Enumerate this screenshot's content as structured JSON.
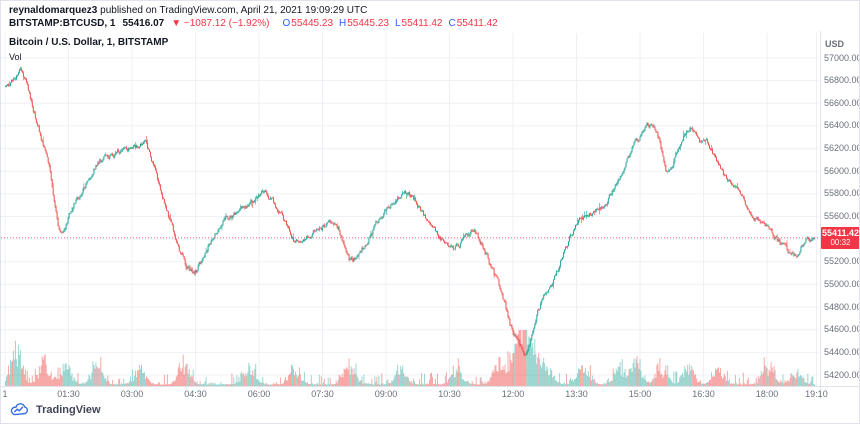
{
  "header": {
    "username": "reynaldomarquez3",
    "published_text": " published on TradingView.com, April 21, 2021 19:09:29 UTC",
    "symbol": "BITSTAMP:BTCUSD, 1",
    "price": "55416.07",
    "arrow": "▼",
    "change": "−1087.12 (−1.92%)",
    "ohlc": [
      {
        "label": "O",
        "value": "55445.23"
      },
      {
        "label": "H",
        "value": "55445.23"
      },
      {
        "label": "L",
        "value": "55411.42"
      },
      {
        "label": "C",
        "value": "55411.42"
      }
    ]
  },
  "legend": {
    "title": "Bitcoin / U.S. Dollar, 1, BITSTAMP",
    "indicator": "Vol"
  },
  "axis": {
    "currency_label": "USD",
    "price_ticks": [
      "57000.00",
      "56800.00",
      "56600.00",
      "56400.00",
      "56200.00",
      "56000.00",
      "55800.00",
      "55600.00",
      "55400.00",
      "55200.00",
      "55000.00",
      "54800.00",
      "54600.00",
      "54400.00",
      "54200.00"
    ],
    "time_ticks": [
      {
        "label": "1",
        "t": 0
      },
      {
        "label": "01:30",
        "t": 90
      },
      {
        "label": "03:00",
        "t": 180
      },
      {
        "label": "04:30",
        "t": 270
      },
      {
        "label": "06:00",
        "t": 360
      },
      {
        "label": "07:30",
        "t": 450
      },
      {
        "label": "09:00",
        "t": 540
      },
      {
        "label": "10:30",
        "t": 630
      },
      {
        "label": "12:00",
        "t": 720
      },
      {
        "label": "13:30",
        "t": 810
      },
      {
        "label": "15:00",
        "t": 900
      },
      {
        "label": "16:30",
        "t": 990
      },
      {
        "label": "18:00",
        "t": 1080
      },
      {
        "label": "19:10",
        "t": 1150
      }
    ],
    "last_price_label": "55411.42",
    "countdown": "00:32"
  },
  "watermark": {
    "brand": "TradingView"
  },
  "colors": {
    "up": "#26a69a",
    "down": "#ef5350",
    "vol_up": "rgba(38,166,154,0.45)",
    "vol_down": "rgba(239,83,80,0.5)",
    "grid": "#edf0f5",
    "axis_border": "#e0e3eb",
    "accent_red": "#f23645",
    "axis_text": "#6a6f7a",
    "label_blue": "#2962ff",
    "text_dark": "#131722",
    "logo_blue": "#2e6be0"
  },
  "chart_data": {
    "type": "candlestick",
    "symbol": "BITSTAMP:BTCUSD",
    "interval_minutes": 1,
    "date": "April 21, 2021",
    "price_axis_range": [
      54200,
      57000
    ],
    "time_span_minutes": 1150,
    "open": 55445.23,
    "high": 55445.23,
    "low": 55411.42,
    "close": 55411.42,
    "last_close": 55411.42,
    "session_high": 56900,
    "session_low": 54320,
    "price_path": [
      [
        0,
        56750
      ],
      [
        21,
        56900
      ],
      [
        60,
        56000
      ],
      [
        75,
        55420
      ],
      [
        90,
        55650
      ],
      [
        130,
        56100
      ],
      [
        175,
        56200
      ],
      [
        197,
        56250
      ],
      [
        225,
        55650
      ],
      [
        253,
        55120
      ],
      [
        267,
        55100
      ],
      [
        295,
        55500
      ],
      [
        338,
        55700
      ],
      [
        368,
        55830
      ],
      [
        408,
        55350
      ],
      [
        436,
        55500
      ],
      [
        466,
        55550
      ],
      [
        487,
        55180
      ],
      [
        520,
        55500
      ],
      [
        553,
        55800
      ],
      [
        570,
        55820
      ],
      [
        605,
        55450
      ],
      [
        633,
        55300
      ],
      [
        661,
        55500
      ],
      [
        689,
        55100
      ],
      [
        703,
        54850
      ],
      [
        717,
        54550
      ],
      [
        735,
        54320
      ],
      [
        752,
        54800
      ],
      [
        773,
        55000
      ],
      [
        788,
        55300
      ],
      [
        810,
        55600
      ],
      [
        845,
        55680
      ],
      [
        872,
        56000
      ],
      [
        893,
        56300
      ],
      [
        911,
        56420
      ],
      [
        925,
        56250
      ],
      [
        935,
        55950
      ],
      [
        956,
        56300
      ],
      [
        968,
        56400
      ],
      [
        985,
        56250
      ],
      [
        991,
        56300
      ],
      [
        1005,
        56050
      ],
      [
        1020,
        55900
      ],
      [
        1040,
        55780
      ],
      [
        1055,
        55600
      ],
      [
        1077,
        55500
      ],
      [
        1104,
        55300
      ],
      [
        1118,
        55250
      ],
      [
        1135,
        55420
      ],
      [
        1148,
        55411
      ]
    ],
    "volume_spike_profile": [
      [
        15,
        46
      ],
      [
        55,
        30
      ],
      [
        85,
        26
      ],
      [
        130,
        22
      ],
      [
        190,
        20
      ],
      [
        253,
        26
      ],
      [
        345,
        24
      ],
      [
        410,
        18
      ],
      [
        487,
        26
      ],
      [
        560,
        18
      ],
      [
        640,
        20
      ],
      [
        700,
        30
      ],
      [
        722,
        44
      ],
      [
        736,
        54
      ],
      [
        748,
        38
      ],
      [
        768,
        24
      ],
      [
        820,
        26
      ],
      [
        870,
        20
      ],
      [
        893,
        28
      ],
      [
        930,
        18
      ],
      [
        968,
        22
      ],
      [
        1010,
        18
      ],
      [
        1080,
        22
      ],
      [
        1120,
        16
      ]
    ],
    "seed": 11
  }
}
